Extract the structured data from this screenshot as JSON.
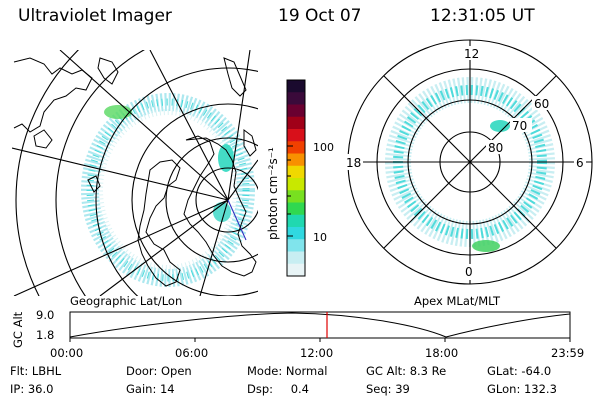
{
  "header": {
    "title": "Ultraviolet Imager",
    "date": "19 Oct 07",
    "time": "12:31:05 UT"
  },
  "colorbar": {
    "unit_label": "photon cm⁻²s⁻¹",
    "ticks": [
      "100",
      "10"
    ],
    "colors": [
      "#1a0a2e",
      "#3a0a3a",
      "#6a0030",
      "#a00018",
      "#d8101a",
      "#f04000",
      "#f89000",
      "#f0d800",
      "#c8e800",
      "#78e020",
      "#30d850",
      "#20d8b0",
      "#30d8e0",
      "#80e4ec",
      "#c8eef2",
      "#e8f4f6"
    ]
  },
  "left_panel": {
    "caption": "Geographic Lat/Lon"
  },
  "right_panel": {
    "caption": "Apex MLat/MLT",
    "mlt_labels": {
      "top": "12",
      "left": "18",
      "right": "6",
      "bottom": "0"
    },
    "lat_labels": [
      "60",
      "70",
      "80"
    ]
  },
  "timeline": {
    "axis_label": "GC Alt",
    "y_ticks": [
      "9.0",
      "1.8"
    ],
    "x_ticks": [
      "00:00",
      "06:00",
      "12:00",
      "18:00",
      "23:59"
    ],
    "marker_color": "#e00000"
  },
  "status": {
    "row1": [
      {
        "key": "Flt:",
        "value": "LBHL"
      },
      {
        "key": "Door:",
        "value": "Open"
      },
      {
        "key": "Mode:",
        "value": "Normal"
      },
      {
        "key": "GC Alt:",
        "value": "8.3 Re"
      },
      {
        "key": "GLat:",
        "value": "-64.0"
      }
    ],
    "row2": [
      {
        "key": "IP:",
        "value": "36.0"
      },
      {
        "key": "Gain:",
        "value": "14"
      },
      {
        "key": "Dsp:",
        "value": "0.4"
      },
      {
        "key": "Seq:",
        "value": "39"
      },
      {
        "key": "GLon:",
        "value": "132.3"
      }
    ]
  }
}
